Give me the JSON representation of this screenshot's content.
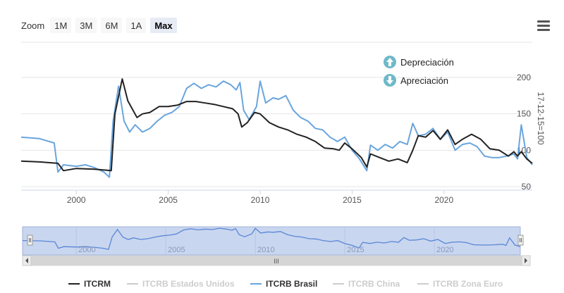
{
  "zoom": {
    "label": "Zoom",
    "buttons": [
      "1M",
      "3M",
      "6M",
      "1A",
      "Max"
    ],
    "active": "Max"
  },
  "annotations": {
    "depreciation": "Depreciación",
    "appreciation": "Apreciación",
    "up_color": "#6fb9c9",
    "down_color": "#6fb9c9"
  },
  "chart_data": {
    "type": "line",
    "title": "",
    "ylabel": "17-12-15=100",
    "xlim": [
      1997,
      2024.8
    ],
    "ylim": [
      40,
      210
    ],
    "x_ticks": [
      2000,
      2005,
      2010,
      2015,
      2020
    ],
    "x_tick_labels": [
      "2000",
      "2005",
      "2010",
      "2015",
      "2020"
    ],
    "y_ticks": [
      50,
      100,
      150,
      200
    ],
    "y_tick_labels": [
      "50",
      "100",
      "150",
      "200"
    ],
    "legend_position": "bottom",
    "series": [
      {
        "name": "ITCRM",
        "color": "#222222",
        "visible": true,
        "x": [
          1997.0,
          1998.0,
          1999.0,
          1999.3,
          2000.0,
          2001.0,
          2001.9,
          2002.1,
          2002.5,
          2002.8,
          2003.3,
          2003.6,
          2004.0,
          2004.5,
          2005.0,
          2005.5,
          2006.0,
          2006.5,
          2007.0,
          2007.5,
          2008.0,
          2008.5,
          2008.8,
          2009.0,
          2009.3,
          2009.7,
          2010.0,
          2010.5,
          2011.0,
          2011.5,
          2012.0,
          2012.5,
          2013.0,
          2013.5,
          2014.0,
          2014.3,
          2014.6,
          2015.0,
          2015.5,
          2015.8,
          2016.0,
          2016.5,
          2017.0,
          2017.5,
          2018.0,
          2018.3,
          2018.6,
          2019.0,
          2019.4,
          2019.8,
          2020.2,
          2020.6,
          2021.0,
          2021.5,
          2022.0,
          2022.5,
          2023.0,
          2023.5,
          2023.8,
          2024.0,
          2024.2,
          2024.5,
          2024.8
        ],
        "values": [
          85,
          84,
          82,
          72,
          75,
          74,
          72,
          150,
          198,
          168,
          145,
          150,
          152,
          160,
          160,
          162,
          167,
          167,
          165,
          163,
          160,
          157,
          150,
          132,
          138,
          152,
          150,
          138,
          132,
          128,
          122,
          118,
          112,
          103,
          102,
          100,
          110,
          102,
          90,
          77,
          95,
          90,
          85,
          88,
          83,
          100,
          120,
          118,
          127,
          115,
          128,
          108,
          115,
          122,
          115,
          102,
          100,
          92,
          98,
          92,
          98,
          88,
          82
        ]
      },
      {
        "name": "ITCRB Estados Unidos",
        "color": "#cccccc",
        "visible": false,
        "x": [],
        "values": []
      },
      {
        "name": "ITCRB Brasil",
        "color": "#6aa5dd",
        "visible": true,
        "x": [
          1997.0,
          1998.0,
          1998.8,
          1999.0,
          1999.3,
          2000.0,
          2000.5,
          2001.0,
          2001.5,
          2001.8,
          2002.0,
          2002.3,
          2002.6,
          2002.9,
          2003.2,
          2003.6,
          2004.0,
          2004.4,
          2004.8,
          2005.2,
          2005.6,
          2006.0,
          2006.4,
          2006.8,
          2007.2,
          2007.6,
          2008.0,
          2008.4,
          2008.7,
          2008.9,
          2009.1,
          2009.4,
          2009.8,
          2010.0,
          2010.3,
          2010.7,
          2011.0,
          2011.4,
          2011.8,
          2012.2,
          2012.6,
          2013.0,
          2013.4,
          2013.8,
          2014.2,
          2014.6,
          2015.0,
          2015.4,
          2015.8,
          2016.0,
          2016.4,
          2016.8,
          2017.2,
          2017.6,
          2018.0,
          2018.3,
          2018.6,
          2019.0,
          2019.4,
          2019.8,
          2020.2,
          2020.6,
          2021.0,
          2021.4,
          2021.8,
          2022.2,
          2022.6,
          2023.0,
          2023.4,
          2023.8,
          2024.0,
          2024.2,
          2024.5,
          2024.8
        ],
        "values": [
          118,
          116,
          110,
          70,
          80,
          78,
          80,
          76,
          70,
          63,
          140,
          188,
          140,
          125,
          135,
          125,
          130,
          140,
          148,
          152,
          160,
          185,
          192,
          185,
          190,
          187,
          195,
          190,
          183,
          193,
          155,
          142,
          160,
          195,
          165,
          172,
          170,
          175,
          155,
          145,
          140,
          130,
          128,
          118,
          112,
          118,
          100,
          88,
          72,
          107,
          100,
          108,
          103,
          112,
          108,
          137,
          120,
          122,
          130,
          115,
          125,
          100,
          108,
          110,
          105,
          92,
          90,
          90,
          92,
          95,
          88,
          135,
          90,
          80
        ]
      },
      {
        "name": "ITCRB China",
        "color": "#cccccc",
        "visible": false,
        "x": [],
        "values": []
      },
      {
        "name": "ITCRB Zona Euro",
        "color": "#cccccc",
        "visible": false,
        "x": [],
        "values": []
      }
    ],
    "navigator": {
      "x_tick_labels": [
        "2000",
        "2005",
        "2010",
        "2015",
        "2020"
      ],
      "x_ticks": [
        2000,
        2005,
        2010,
        2015,
        2020
      ],
      "scrollbar_grip": "III"
    }
  }
}
